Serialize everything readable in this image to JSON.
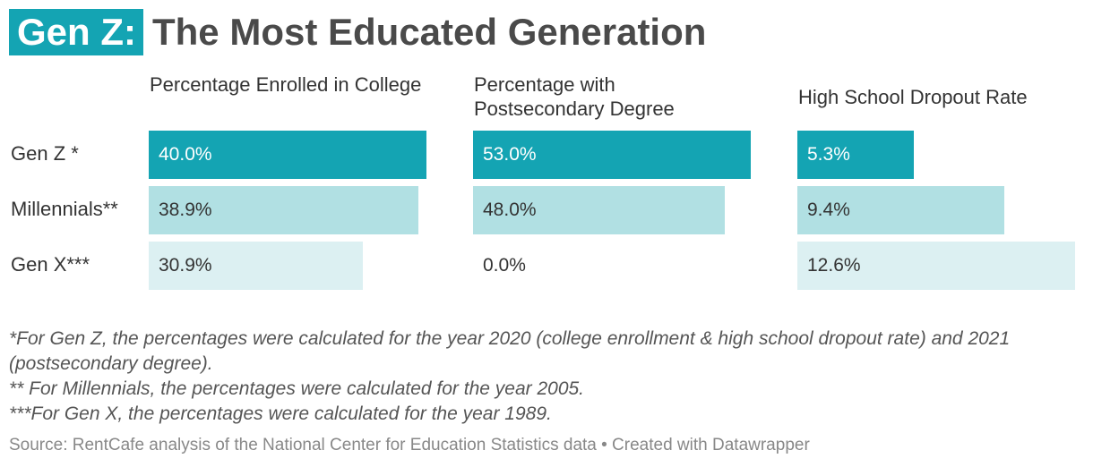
{
  "title": {
    "tag": "Gen Z:",
    "main": "The Most Educated Generation"
  },
  "chart_data": {
    "type": "bar",
    "categories": [
      "Gen Z *",
      "Millennials**",
      "Gen X***"
    ],
    "series": [
      {
        "name": "Percentage Enrolled in College",
        "values": [
          40.0,
          38.9,
          30.9
        ],
        "labels": [
          "40.0%",
          "38.9%",
          "30.9%"
        ],
        "max": 40.0
      },
      {
        "name": "Percentage with Postsecondary Degree",
        "values": [
          53.0,
          48.0,
          0.0
        ],
        "labels": [
          "53.0%",
          "48.0%",
          "0.0%"
        ],
        "max": 53.0
      },
      {
        "name": "High School Dropout Rate",
        "values": [
          5.3,
          9.4,
          12.6
        ],
        "labels": [
          "5.3%",
          "9.4%",
          "12.6%"
        ],
        "max": 12.6
      }
    ],
    "row_colors": [
      "#14a4b3",
      "#b1e0e3",
      "#dcf0f2"
    ]
  },
  "notes": [
    "*For Gen Z, the percentages were calculated for the year 2020 (college enrollment & high school dropout rate) and 2021 (postsecondary degree).",
    "** For Millennials, the percentages were calculated for the year 2005.",
    "***For Gen X, the percentages were calculated for the year 1989."
  ],
  "source": "Source: RentCafe analysis of the National Center for Education Statistics data • Created with Datawrapper"
}
